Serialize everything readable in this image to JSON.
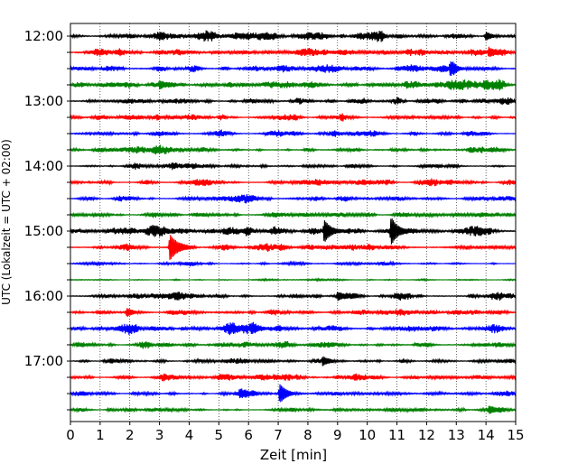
{
  "chart_data": {
    "type": "seismogram",
    "xlabel": "Zeit  [min]",
    "ylabel": "UTC (Lokalzeit = UTC + 02:00)",
    "xlim": [
      0,
      15
    ],
    "x_ticks": [
      "0",
      "1",
      "2",
      "3",
      "4",
      "5",
      "6",
      "7",
      "8",
      "9",
      "10",
      "11",
      "12",
      "13",
      "14",
      "15"
    ],
    "vertical_grid": "dotted, every 1 min",
    "row_interval_minutes": 15,
    "row_start": "12:00",
    "row_count": 24,
    "y_tick_labels": [
      "12:00",
      "13:00",
      "14:00",
      "15:00",
      "16:00",
      "17:00"
    ],
    "trace_colors_cycle": [
      "#000000",
      "#ff0000",
      "#0000ff",
      "#008000"
    ],
    "noise_level": [
      0.55,
      0.5,
      0.6,
      0.55,
      0.5,
      0.45,
      0.4,
      0.45,
      0.4,
      0.38,
      0.38,
      0.4,
      0.65,
      0.55,
      0.22,
      0.12,
      0.5,
      0.45,
      0.5,
      0.45,
      0.4,
      0.4,
      0.3,
      0.3
    ],
    "events": [
      {
        "row": 12,
        "minute": 8.55,
        "amplitude": 1.3
      },
      {
        "row": 12,
        "minute": 10.8,
        "amplitude": 1.5
      },
      {
        "row": 13,
        "minute": 3.35,
        "amplitude": 1.6
      },
      {
        "row": 2,
        "minute": 12.8,
        "amplitude": 0.7
      },
      {
        "row": 17,
        "minute": 1.9,
        "amplitude": 0.5
      },
      {
        "row": 22,
        "minute": 7.05,
        "amplitude": 1.1
      },
      {
        "row": 22,
        "minute": 5.7,
        "amplitude": 0.45
      },
      {
        "row": 20,
        "minute": 8.5,
        "amplitude": 0.5
      },
      {
        "row": 16,
        "minute": 9.0,
        "amplitude": 0.45
      },
      {
        "row": 18,
        "minute": 6.1,
        "amplitude": 0.45
      },
      {
        "row": 1,
        "minute": 14.1,
        "amplitude": 0.5
      },
      {
        "row": 0,
        "minute": 14.0,
        "amplitude": 0.45
      },
      {
        "row": 3,
        "minute": 3.0,
        "amplitude": 0.45
      },
      {
        "row": 23,
        "minute": 14.1,
        "amplitude": 0.4
      }
    ]
  }
}
